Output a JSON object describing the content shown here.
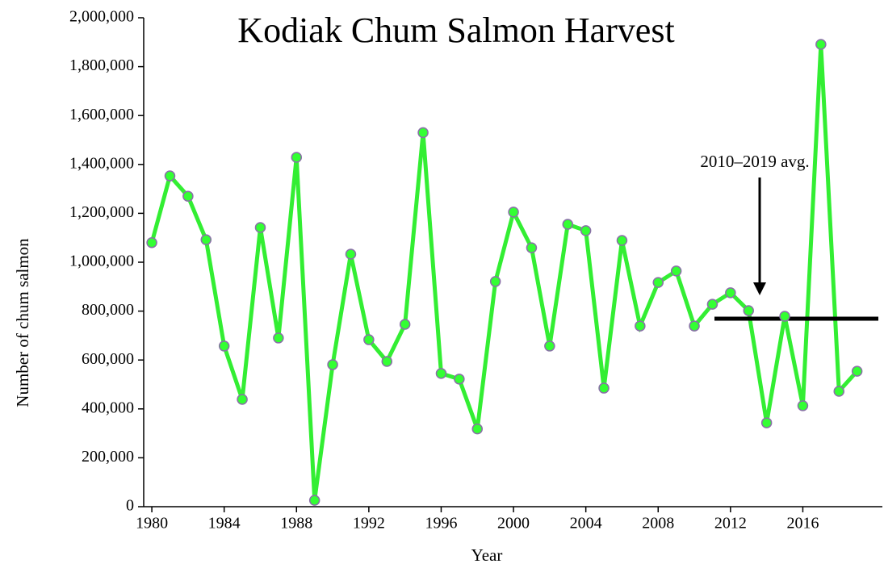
{
  "chart_data": {
    "type": "line",
    "title": "Kodiak Chum Salmon Harvest",
    "x_label": "Year",
    "y_label": "Number of chum salmon",
    "x": [
      1980,
      1981,
      1982,
      1983,
      1984,
      1985,
      1986,
      1987,
      1988,
      1989,
      1990,
      1991,
      1992,
      1993,
      1994,
      1995,
      1996,
      1997,
      1998,
      1999,
      2000,
      2001,
      2002,
      2003,
      2004,
      2005,
      2006,
      2007,
      2008,
      2009,
      2010,
      2011,
      2012,
      2013,
      2014,
      2015,
      2016,
      2017,
      2018,
      2019
    ],
    "series": [
      {
        "name": "Chum salmon harvest",
        "color": "#33ee33",
        "marker_color": "#33ff33",
        "marker_edge": "#8a6fa8",
        "values": [
          1080000,
          1353000,
          1270000,
          1092000,
          657000,
          439000,
          1142000,
          690000,
          1429000,
          26000,
          581000,
          1033000,
          683000,
          594000,
          746000,
          1530000,
          545000,
          522000,
          318000,
          921000,
          1205000,
          1059000,
          657000,
          1155000,
          1129000,
          485000,
          1089000,
          739000,
          917000,
          964000,
          739000,
          828000,
          875000,
          802000,
          343000,
          779000,
          413000,
          1891000,
          472000,
          554000
        ]
      }
    ],
    "average": {
      "value": 769000,
      "color": "#000000"
    },
    "annotation": "2010–2019 avg.",
    "xlim": [
      1979.55,
      2020.4
    ],
    "ylim": [
      0,
      2000000
    ],
    "xticks": [
      1980,
      1984,
      1988,
      1992,
      1996,
      2000,
      2004,
      2008,
      2012,
      2016
    ],
    "yticks": [
      {
        "value": 0,
        "label": "0"
      },
      {
        "value": 200000,
        "label": "200,000"
      },
      {
        "value": 400000,
        "label": "400,000"
      },
      {
        "value": 600000,
        "label": "600,000"
      },
      {
        "value": 800000,
        "label": "800,000"
      },
      {
        "value": 1000000,
        "label": "1,000,000"
      },
      {
        "value": 1200000,
        "label": "1,200,000"
      },
      {
        "value": 1400000,
        "label": "1,400,000"
      },
      {
        "value": 1600000,
        "label": "1,600,000"
      },
      {
        "value": 1800000,
        "label": "1,800,000"
      },
      {
        "value": 2000000,
        "label": "2,000,000"
      }
    ],
    "grid": false
  }
}
